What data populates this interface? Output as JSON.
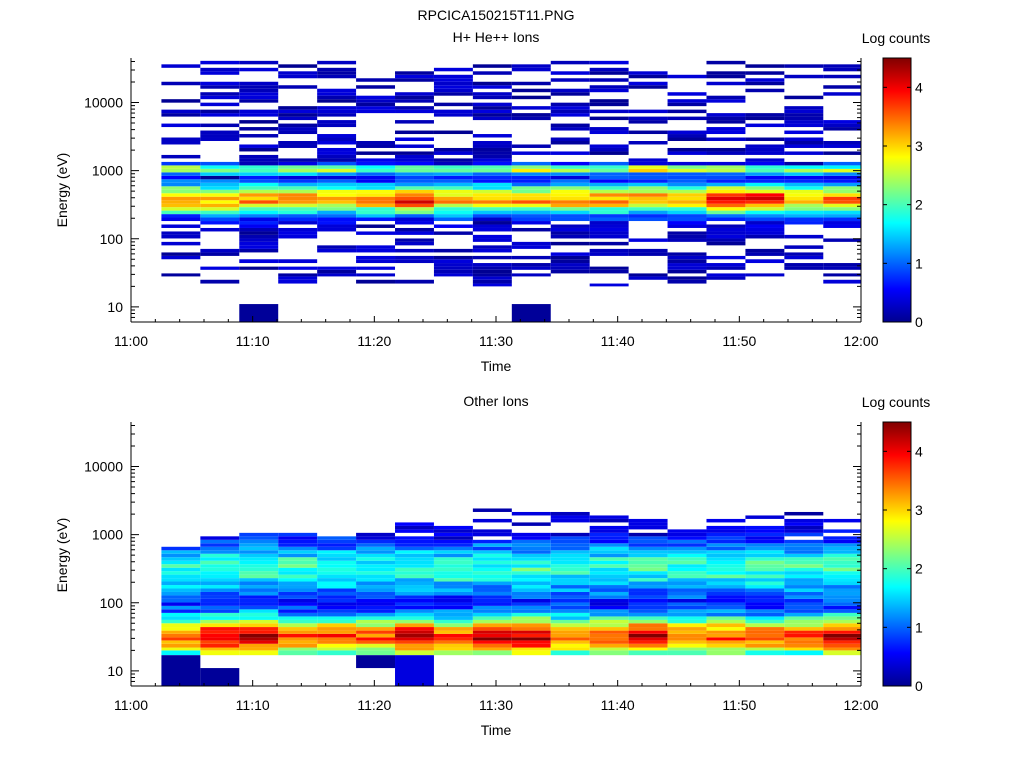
{
  "figure": {
    "title": "RPCICA150215T11.PNG"
  },
  "colors": {
    "colormap": [
      "#00008f",
      "#0000ff",
      "#0080ff",
      "#00ffff",
      "#80ff80",
      "#ffff00",
      "#ff8000",
      "#ff0000",
      "#800000"
    ],
    "axis": "#000000",
    "background": "#ffffff"
  },
  "chart_data": [
    {
      "type": "heatmap",
      "title": "H+ He++ Ions",
      "xlabel": "Time",
      "ylabel": "Energy (eV)",
      "colorbar_label": "Log counts",
      "colorbar_ticks": [
        "0",
        "1",
        "2",
        "3",
        "4"
      ],
      "colorbar_range": [
        0,
        4.5
      ],
      "x_ticks": [
        "11:00",
        "11:10",
        "11:20",
        "11:30",
        "11:40",
        "11:50",
        "12:00"
      ],
      "x_range_minutes": [
        0,
        60
      ],
      "y_scale": "log",
      "y_ticks": [
        "10",
        "100",
        "1000",
        "10000"
      ],
      "y_range": [
        6,
        45000
      ],
      "time_bins_minutes": [
        2.5,
        5.7,
        8.9,
        12.1,
        15.3,
        18.5,
        21.7,
        24.9,
        28.1,
        31.3,
        34.5,
        37.7,
        40.9,
        44.1,
        47.3,
        50.5,
        53.7,
        56.9,
        60.1
      ],
      "energy_bins_eV": [
        20,
        22,
        25,
        28,
        31,
        35,
        39,
        44,
        50,
        56,
        63,
        71,
        80,
        90,
        101,
        114,
        128,
        144,
        162,
        182,
        205,
        230,
        259,
        291,
        327,
        368,
        414,
        466,
        524,
        589,
        663,
        746,
        839,
        944,
        1062,
        1194,
        1343,
        1511,
        1700,
        1912,
        2151,
        2420,
        2722,
        3063,
        3445,
        3876,
        4360,
        4905,
        5519,
        6208,
        6985,
        7858,
        8840,
        9945,
        11188,
        12587,
        14160,
        15930,
        17921,
        20161,
        22682,
        25517,
        28707,
        32295,
        36332,
        40873
      ],
      "low_energy_cells": [
        {
          "t0": 8.9,
          "t1": 12.1,
          "e0": 6,
          "e1": 11,
          "v": 0.05
        },
        {
          "t0": 31.3,
          "t1": 34.5,
          "e0": 6,
          "e1": 11,
          "v": 0.05
        }
      ],
      "profile": {
        "peak_log_eV": 2.58,
        "peak_width": 0.16,
        "peak_value": 3.3,
        "secondary_log_eV": 3.02,
        "secondary_width": 0.05,
        "secondary_value": 2.4,
        "floor_value": 0.35,
        "floor_probability": 0.42,
        "floor_min_log_eV": 1.35,
        "bright_intervals": [
          6,
          14,
          15
        ],
        "secondary_intervals": [
          0,
          3,
          9,
          12
        ]
      }
    },
    {
      "type": "heatmap",
      "title": "Other Ions",
      "xlabel": "Time",
      "ylabel": "Energy (eV)",
      "colorbar_label": "Log counts",
      "colorbar_ticks": [
        "0",
        "1",
        "2",
        "3",
        "4"
      ],
      "colorbar_range": [
        0,
        4.5
      ],
      "x_ticks": [
        "11:00",
        "11:10",
        "11:20",
        "11:30",
        "11:40",
        "11:50",
        "12:00"
      ],
      "x_range_minutes": [
        0,
        60
      ],
      "y_scale": "log",
      "y_ticks": [
        "10",
        "100",
        "1000",
        "10000"
      ],
      "y_range": [
        6,
        45000
      ],
      "time_bins_minutes": [
        2.5,
        5.7,
        8.9,
        12.1,
        15.3,
        18.5,
        21.7,
        24.9,
        28.1,
        31.3,
        34.5,
        37.7,
        40.9,
        44.1,
        47.3,
        50.5,
        53.7,
        56.9,
        60.1
      ],
      "energy_bins_eV": [
        17,
        20,
        22,
        25,
        28,
        31,
        35,
        39,
        44,
        50,
        56,
        63,
        71,
        80,
        90,
        101,
        114,
        128,
        144,
        162,
        182,
        205,
        230,
        259,
        291,
        327,
        368,
        414,
        466,
        524,
        589,
        663,
        746,
        839,
        944,
        1062,
        1194,
        1343,
        1511,
        1700,
        1912,
        2151,
        2420
      ],
      "low_energy_cells": [
        {
          "t0": 2.5,
          "t1": 5.7,
          "e0": 6,
          "e1": 17,
          "v": 0.05
        },
        {
          "t0": 5.7,
          "t1": 8.9,
          "e0": 6,
          "e1": 11,
          "v": 0.05
        },
        {
          "t0": 18.5,
          "t1": 21.7,
          "e0": 11,
          "e1": 17,
          "v": 0.05
        },
        {
          "t0": 21.7,
          "t1": 24.9,
          "e0": 6,
          "e1": 17,
          "v": 0.4
        }
      ],
      "profile": {
        "peak_log_eV": 1.5,
        "peak_width": 0.22,
        "peak_value": 3.6,
        "secondary_log_eV": 2.5,
        "secondary_width": 0.3,
        "secondary_value": 1.9,
        "floor_value": 0.45,
        "floor_probability": 0.25,
        "floor_min_log_eV": 1.2,
        "top_cutoff_eV": [
          700,
          1100,
          1100,
          1100,
          1100,
          1100,
          1500,
          2200,
          2300,
          2300,
          2300,
          2100,
          1800,
          1800,
          1800,
          2100,
          2100,
          2100
        ],
        "bright_intervals": [
          1,
          2,
          6,
          8,
          9,
          12,
          17
        ]
      }
    }
  ]
}
